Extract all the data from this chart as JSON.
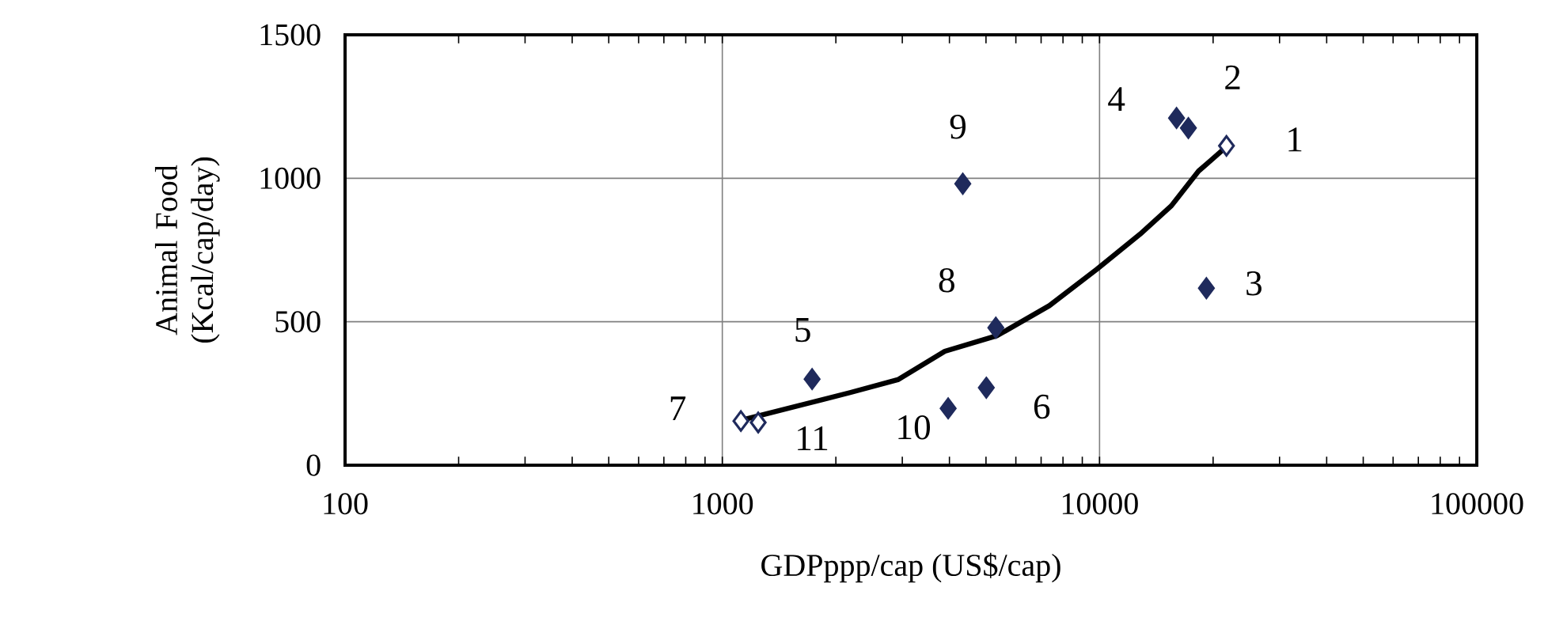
{
  "chart_data": {
    "type": "scatter",
    "xlabel": "GDPppp/cap (US$/cap)",
    "ylabel": "Animal Food (Kcal/cap/day)",
    "log": "x",
    "xlim": [
      100,
      100000
    ],
    "xticks": [
      100,
      1000,
      10000,
      100000
    ],
    "ylim": [
      0,
      1500
    ],
    "yticks": [
      0,
      500,
      1000,
      1500
    ],
    "grid": true,
    "marker": "diamond",
    "series": [
      {
        "color": "#1f2a5c",
        "x": [
          17200,
          19200,
          16000,
          1730,
          5010,
          5310,
          4340,
          3970
        ],
        "values": [
          1175,
          617,
          1210,
          300,
          270,
          479,
          981,
          198
        ]
      },
      {
        "color": "#ffffff",
        "x": [
          21700,
          1120,
          1245
        ],
        "values": [
          1113,
          154,
          149
        ]
      },
      {
        "type": "line",
        "marker": "none",
        "color": "#000000",
        "x": [
          1150,
          2180,
          2920,
          3890,
          5360,
          7360,
          9840,
          12800,
          15500,
          18300,
          21700
        ],
        "values": [
          160,
          253,
          298,
          397,
          452,
          556,
          683,
          805,
          904,
          1025,
          1110
        ]
      }
    ],
    "annotations": [
      {
        "text": "1",
        "x": 21700,
        "y": 1113
      },
      {
        "text": "2",
        "x": 17200,
        "y": 1175
      },
      {
        "text": "3",
        "x": 19200,
        "y": 617
      },
      {
        "text": "4",
        "x": 16000,
        "y": 1210
      },
      {
        "text": "5",
        "x": 1730,
        "y": 300
      },
      {
        "text": "6",
        "x": 5010,
        "y": 270
      },
      {
        "text": "7",
        "x": 1120,
        "y": 154
      },
      {
        "text": "8",
        "x": 5310,
        "y": 479
      },
      {
        "text": "9",
        "x": 4340,
        "y": 981
      },
      {
        "text": "10",
        "x": 3970,
        "y": 198
      },
      {
        "text": "11",
        "x": 1245,
        "y": 149
      }
    ]
  }
}
